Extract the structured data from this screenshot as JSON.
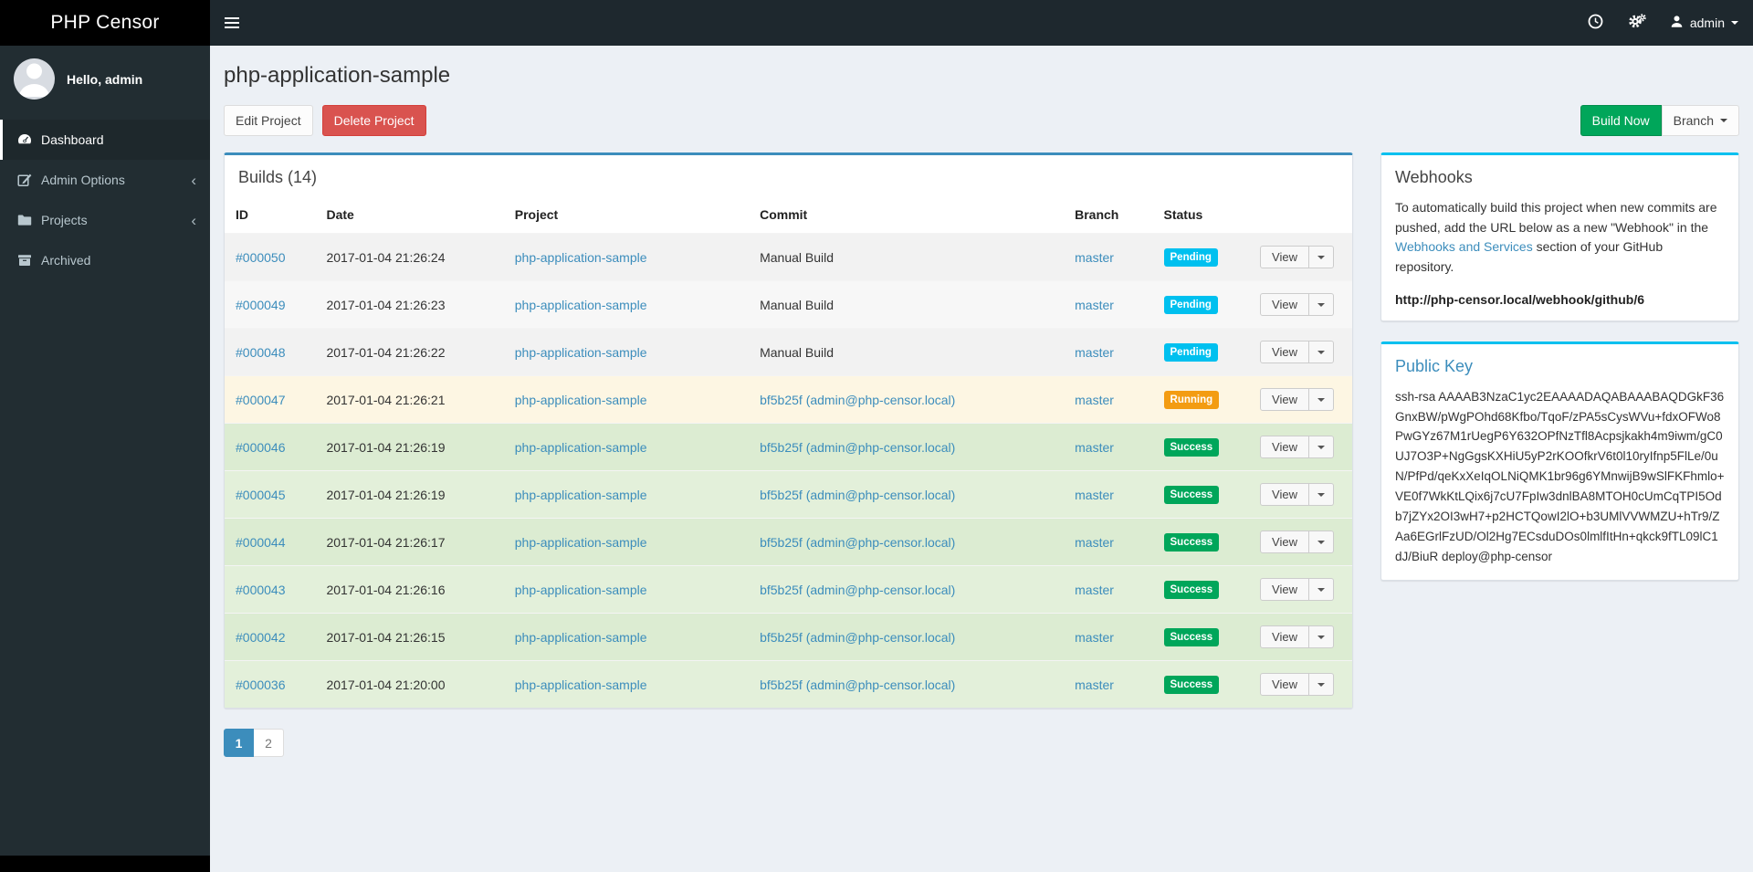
{
  "navbar": {
    "brand": "PHP Censor",
    "user": "admin"
  },
  "sidebar": {
    "greeting": "Hello, admin",
    "items": [
      {
        "label": "Dashboard",
        "icon": "gauge-icon",
        "active": true,
        "chevron": false
      },
      {
        "label": "Admin Options",
        "icon": "edit-icon",
        "active": false,
        "chevron": true
      },
      {
        "label": "Projects",
        "icon": "folder-icon",
        "active": false,
        "chevron": true
      },
      {
        "label": "Archived",
        "icon": "archive-icon",
        "active": false,
        "chevron": false
      }
    ]
  },
  "page": {
    "title": "php-application-sample",
    "edit_label": "Edit Project",
    "delete_label": "Delete Project",
    "build_now_label": "Build Now",
    "branch_label": "Branch"
  },
  "builds_panel": {
    "title": "Builds (14)",
    "columns": [
      "ID",
      "Date",
      "Project",
      "Commit",
      "Branch",
      "Status",
      ""
    ],
    "view_label": "View",
    "rows": [
      {
        "id": "#000050",
        "date": "2017-01-04 21:26:24",
        "project": "php-application-sample",
        "commit": "Manual Build",
        "commit_link": false,
        "branch": "master",
        "status": "Pending",
        "status_type": "pending"
      },
      {
        "id": "#000049",
        "date": "2017-01-04 21:26:23",
        "project": "php-application-sample",
        "commit": "Manual Build",
        "commit_link": false,
        "branch": "master",
        "status": "Pending",
        "status_type": "pending"
      },
      {
        "id": "#000048",
        "date": "2017-01-04 21:26:22",
        "project": "php-application-sample",
        "commit": "Manual Build",
        "commit_link": false,
        "branch": "master",
        "status": "Pending",
        "status_type": "pending"
      },
      {
        "id": "#000047",
        "date": "2017-01-04 21:26:21",
        "project": "php-application-sample",
        "commit": "bf5b25f (admin@php-censor.local)",
        "commit_link": true,
        "branch": "master",
        "status": "Running",
        "status_type": "running"
      },
      {
        "id": "#000046",
        "date": "2017-01-04 21:26:19",
        "project": "php-application-sample",
        "commit": "bf5b25f (admin@php-censor.local)",
        "commit_link": true,
        "branch": "master",
        "status": "Success",
        "status_type": "success"
      },
      {
        "id": "#000045",
        "date": "2017-01-04 21:26:19",
        "project": "php-application-sample",
        "commit": "bf5b25f (admin@php-censor.local)",
        "commit_link": true,
        "branch": "master",
        "status": "Success",
        "status_type": "success"
      },
      {
        "id": "#000044",
        "date": "2017-01-04 21:26:17",
        "project": "php-application-sample",
        "commit": "bf5b25f (admin@php-censor.local)",
        "commit_link": true,
        "branch": "master",
        "status": "Success",
        "status_type": "success"
      },
      {
        "id": "#000043",
        "date": "2017-01-04 21:26:16",
        "project": "php-application-sample",
        "commit": "bf5b25f (admin@php-censor.local)",
        "commit_link": true,
        "branch": "master",
        "status": "Success",
        "status_type": "success"
      },
      {
        "id": "#000042",
        "date": "2017-01-04 21:26:15",
        "project": "php-application-sample",
        "commit": "bf5b25f (admin@php-censor.local)",
        "commit_link": true,
        "branch": "master",
        "status": "Success",
        "status_type": "success"
      },
      {
        "id": "#000036",
        "date": "2017-01-04 21:20:00",
        "project": "php-application-sample",
        "commit": "bf5b25f (admin@php-censor.local)",
        "commit_link": true,
        "branch": "master",
        "status": "Success",
        "status_type": "success"
      }
    ]
  },
  "pagination": {
    "pages": [
      {
        "label": "1",
        "active": true
      },
      {
        "label": "2",
        "active": false
      }
    ]
  },
  "webhooks": {
    "title": "Webhooks",
    "text_before": "To automatically build this project when new commits are pushed, add the URL below as a new \"Webhook\" in the ",
    "link_text": "Webhooks and Services",
    "text_after": " section of your GitHub repository.",
    "url": "http://php-censor.local/webhook/github/6"
  },
  "public_key": {
    "title": "Public Key",
    "key": "ssh-rsa AAAAB3NzaC1yc2EAAAADAQABAAABAQDGkF36GnxBW/pWgPOhd68Kfbo/TqoF/zPA5sCysWVu+fdxOFWo8PwGYz67M1rUegP6Y632OPfNzTfl8Acpsjkakh4m9iwm/gC0UJ7O3P+NgGgsKXHiU5yP2rKOOfkrV6t0l10ryIfnp5FlLe/0uN/PfPd/qeKxXeIqOLNiQMK1br96g6YMnwijB9wSlFKFhmlo+VE0f7WkKtLQix6j7cU7FpIw3dnlBA8MTOH0cUmCqTPI5Odb7jZYx2OI3wH7+p2HCTQowI2lO+b3UMlVVWMZU+hTr9/ZAa6EGrlFzUD/Ol2Hg7ECsduDOs0lmlfItHn+qkck9fTL09lC1dJ/BiuR deploy@php-censor"
  },
  "colors": {
    "accent_blue": "#3c8dbc",
    "info_cyan": "#00c0ef",
    "success_green": "#00a65a",
    "warning_orange": "#f39c12",
    "danger_red": "#d9534f",
    "sidebar_dark": "#222d32",
    "navbar_dark": "#1e282e"
  }
}
